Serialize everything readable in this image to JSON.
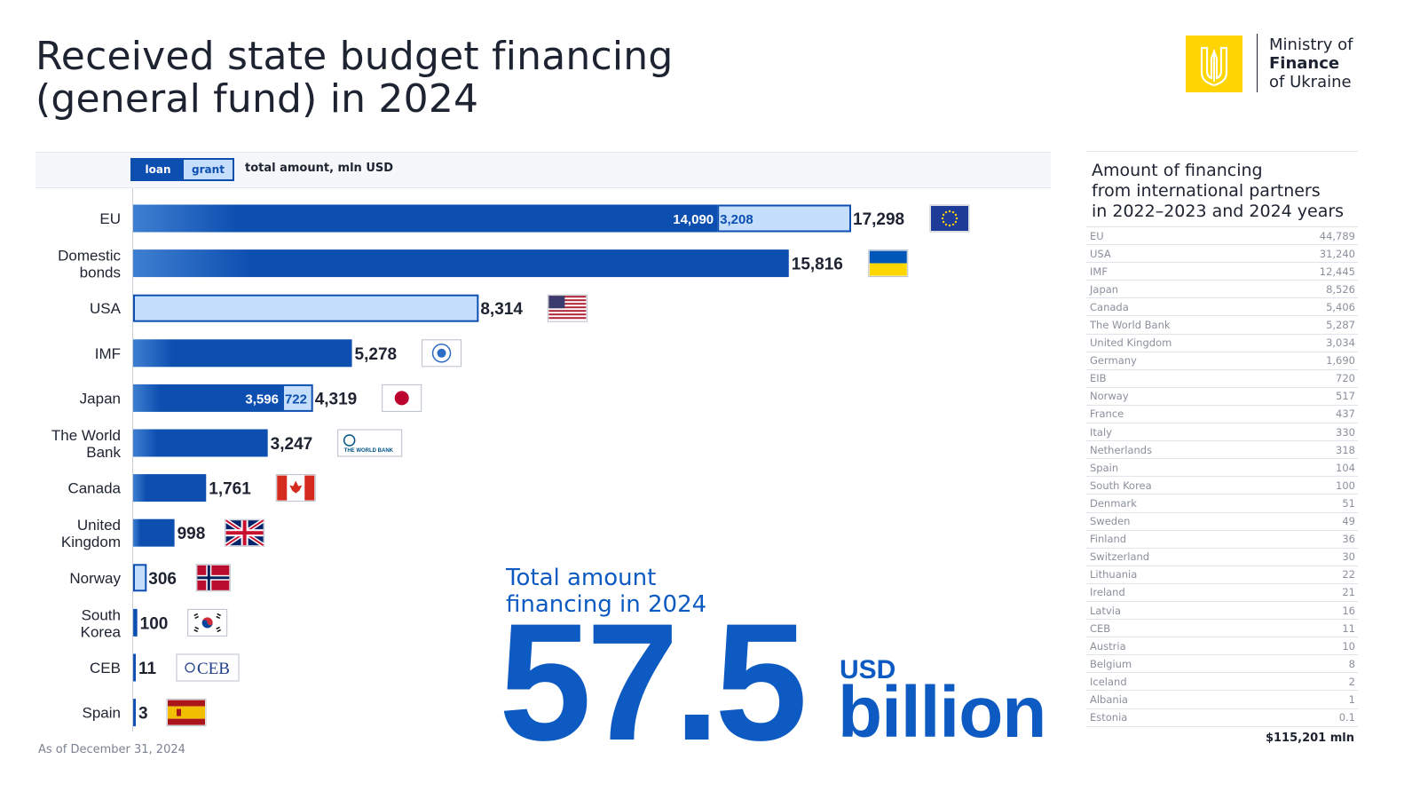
{
  "header": {
    "title_line1": "Received state budget financing",
    "title_line2": "(general fund) in 2024"
  },
  "logo": {
    "line1": "Ministry of",
    "line2": "Finance",
    "line3": "of Ukraine",
    "brand_color": "#ffd400",
    "icon": "tryzub-trident-icon"
  },
  "legend": {
    "loan": "loan",
    "grant": "grant",
    "total": "total amount, mln USD"
  },
  "colors": {
    "loan": "#0d4fb0",
    "grant": "#c5defb",
    "accent": "#0d5ac2"
  },
  "chart_data": {
    "type": "bar",
    "orientation": "horizontal",
    "stacked": true,
    "categories": [
      [
        "EU"
      ],
      [
        "Domestic",
        "bonds"
      ],
      [
        "USA"
      ],
      [
        "IMF"
      ],
      [
        "Japan"
      ],
      [
        "The World",
        "Bank"
      ],
      [
        "Canada"
      ],
      [
        "United",
        "Kingdom"
      ],
      [
        "Norway"
      ],
      [
        "South",
        "Korea"
      ],
      [
        "CEB"
      ],
      [
        "Spain"
      ]
    ],
    "series": [
      {
        "name": "loan",
        "values": [
          14090,
          15816,
          0,
          5278,
          3596,
          3247,
          1761,
          998,
          0,
          100,
          11,
          3
        ]
      },
      {
        "name": "grant",
        "values": [
          3208,
          0,
          8314,
          0,
          722,
          0,
          0,
          0,
          306,
          0,
          0,
          0
        ]
      }
    ],
    "segment_labels": [
      [
        "14,090",
        "3,208"
      ],
      [
        "",
        ""
      ],
      [
        "",
        ""
      ],
      [
        "",
        ""
      ],
      [
        "3,596",
        "722"
      ],
      [
        "",
        ""
      ],
      [
        "",
        ""
      ],
      [
        "",
        ""
      ],
      [
        "",
        ""
      ],
      [
        "",
        ""
      ],
      [
        "",
        ""
      ],
      [
        "",
        ""
      ]
    ],
    "totals": [
      "17,298",
      "15,816",
      "8,314",
      "5,278",
      "4,319",
      "3,247",
      "1,761",
      "998",
      "306",
      "100",
      "11",
      "3"
    ],
    "flags": [
      "eu-flag-icon",
      "ukraine-flag-icon",
      "usa-flag-icon",
      "imf-logo-icon",
      "japan-flag-icon",
      "world-bank-logo-icon",
      "canada-flag-icon",
      "uk-flag-icon",
      "norway-flag-icon",
      "south-korea-flag-icon",
      "ceb-logo-icon",
      "spain-flag-icon"
    ],
    "logo_texts": {
      "world_bank": "THE WORLD BANK",
      "ceb": "CEB"
    },
    "xlim": [
      0,
      18000
    ],
    "grid": false,
    "legend_position": "top-left"
  },
  "note": "As of December 31, 2024",
  "highlight": {
    "heading_line1": "Total amount",
    "heading_line2": "financing in 2024",
    "value": "57.5",
    "unit": "USD",
    "scale": "billion"
  },
  "sidebar": {
    "title_line1": "Amount of financing",
    "title_line2": "from international partners",
    "title_line3": "in 2022–2023 and 2024 years",
    "rows": [
      {
        "name": "EU",
        "value": "44,789"
      },
      {
        "name": "USA",
        "value": "31,240"
      },
      {
        "name": "IMF",
        "value": "12,445"
      },
      {
        "name": "Japan",
        "value": "8,526"
      },
      {
        "name": "Canada",
        "value": "5,406"
      },
      {
        "name": "The World Bank",
        "value": "5,287"
      },
      {
        "name": "United Kingdom",
        "value": "3,034"
      },
      {
        "name": "Germany",
        "value": "1,690"
      },
      {
        "name": "EIB",
        "value": "720"
      },
      {
        "name": "Norway",
        "value": "517"
      },
      {
        "name": "France",
        "value": "437"
      },
      {
        "name": "Italy",
        "value": "330"
      },
      {
        "name": "Netherlands",
        "value": "318"
      },
      {
        "name": "Spain",
        "value": "104"
      },
      {
        "name": "South Korea",
        "value": "100"
      },
      {
        "name": "Denmark",
        "value": "51"
      },
      {
        "name": "Sweden",
        "value": "49"
      },
      {
        "name": "Finland",
        "value": "36"
      },
      {
        "name": "Switzerland",
        "value": "30"
      },
      {
        "name": "Lithuania",
        "value": "22"
      },
      {
        "name": "Ireland",
        "value": "21"
      },
      {
        "name": "Latvia",
        "value": "16"
      },
      {
        "name": "CEB",
        "value": "11"
      },
      {
        "name": "Austria",
        "value": "10"
      },
      {
        "name": "Belgium",
        "value": "8"
      },
      {
        "name": "Iceland",
        "value": "2"
      },
      {
        "name": "Albania",
        "value": "1"
      },
      {
        "name": "Estonia",
        "value": "0.1"
      }
    ],
    "total": "$115,201 mln"
  }
}
